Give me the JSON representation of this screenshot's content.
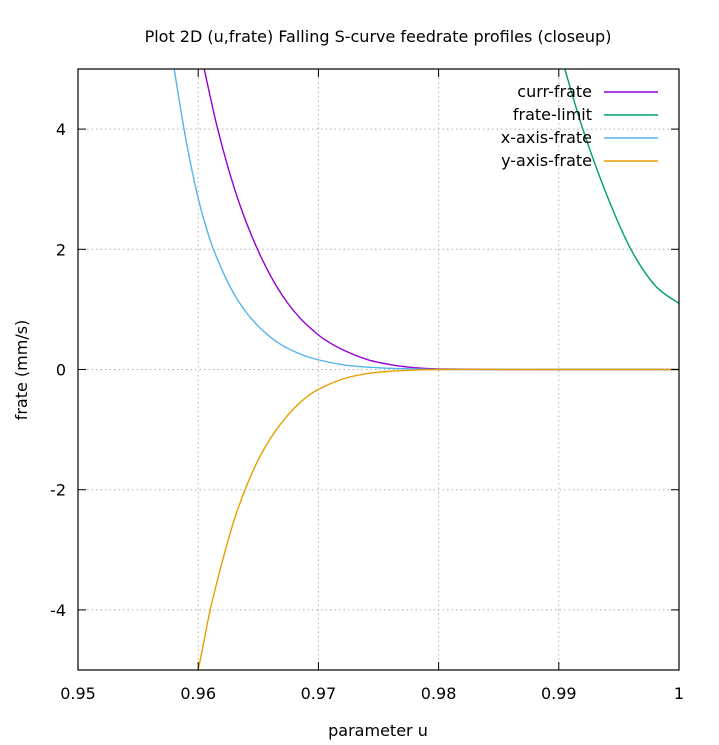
{
  "chart_data": {
    "type": "line",
    "title": "Plot 2D (u,frate) Falling S-curve feedrate profiles (closeup)",
    "xlabel": "parameter u",
    "ylabel": "frate (mm/s)",
    "xlim": [
      0.95,
      1.0
    ],
    "ylim": [
      -5,
      5
    ],
    "x_ticks": [
      0.95,
      0.96,
      0.97,
      0.98,
      0.99,
      1.0
    ],
    "x_tick_labels": [
      "0.95",
      "0.96",
      "0.97",
      "0.98",
      "0.99",
      "1"
    ],
    "y_ticks": [
      -4,
      -2,
      0,
      2,
      4
    ],
    "y_tick_labels": [
      "-4",
      "-2",
      "0",
      "2",
      "4"
    ],
    "grid": true,
    "legend_position": "top-right",
    "series": [
      {
        "name": "curr-frate",
        "color": "#9400d3",
        "x": [
          0.9605,
          0.9615,
          0.9625,
          0.9635,
          0.9645,
          0.9655,
          0.9665,
          0.9675,
          0.9685,
          0.9695,
          0.9705,
          0.972,
          0.974,
          0.976,
          0.978,
          0.98,
          0.985,
          0.99,
          0.995,
          1.0
        ],
        "y": [
          5.0,
          4.1,
          3.35,
          2.72,
          2.2,
          1.76,
          1.39,
          1.09,
          0.85,
          0.66,
          0.5,
          0.33,
          0.17,
          0.08,
          0.03,
          0.01,
          0.0,
          0.0,
          0.0,
          0.0
        ]
      },
      {
        "name": "frate-limit",
        "color": "#009e73",
        "x": [
          0.9905,
          0.992,
          0.994,
          0.996,
          0.998,
          1.0
        ],
        "y": [
          5.0,
          4.0,
          2.9,
          2.0,
          1.4,
          1.1
        ]
      },
      {
        "name": "x-axis-frate",
        "color": "#56b4e9",
        "x": [
          0.958,
          0.959,
          0.96,
          0.961,
          0.962,
          0.963,
          0.964,
          0.965,
          0.966,
          0.967,
          0.968,
          0.969,
          0.97,
          0.972,
          0.974,
          0.976,
          0.978,
          0.98,
          0.985,
          0.99,
          0.995,
          1.0
        ],
        "y": [
          5.0,
          3.8,
          2.85,
          2.15,
          1.65,
          1.25,
          0.95,
          0.72,
          0.54,
          0.4,
          0.3,
          0.22,
          0.16,
          0.08,
          0.04,
          0.02,
          0.01,
          0.0,
          0.0,
          0.0,
          0.0,
          0.0
        ]
      },
      {
        "name": "y-axis-frate",
        "color": "#e69f00",
        "x": [
          0.96,
          0.9605,
          0.961,
          0.962,
          0.963,
          0.964,
          0.965,
          0.966,
          0.967,
          0.968,
          0.969,
          0.97,
          0.972,
          0.974,
          0.976,
          0.978,
          0.98,
          0.985,
          0.99,
          0.995,
          1.0
        ],
        "y": [
          -5.0,
          -4.5,
          -4.0,
          -3.2,
          -2.5,
          -1.95,
          -1.5,
          -1.15,
          -0.87,
          -0.64,
          -0.46,
          -0.33,
          -0.16,
          -0.07,
          -0.03,
          -0.01,
          0.0,
          0.0,
          0.0,
          0.0,
          0.0
        ]
      }
    ]
  }
}
